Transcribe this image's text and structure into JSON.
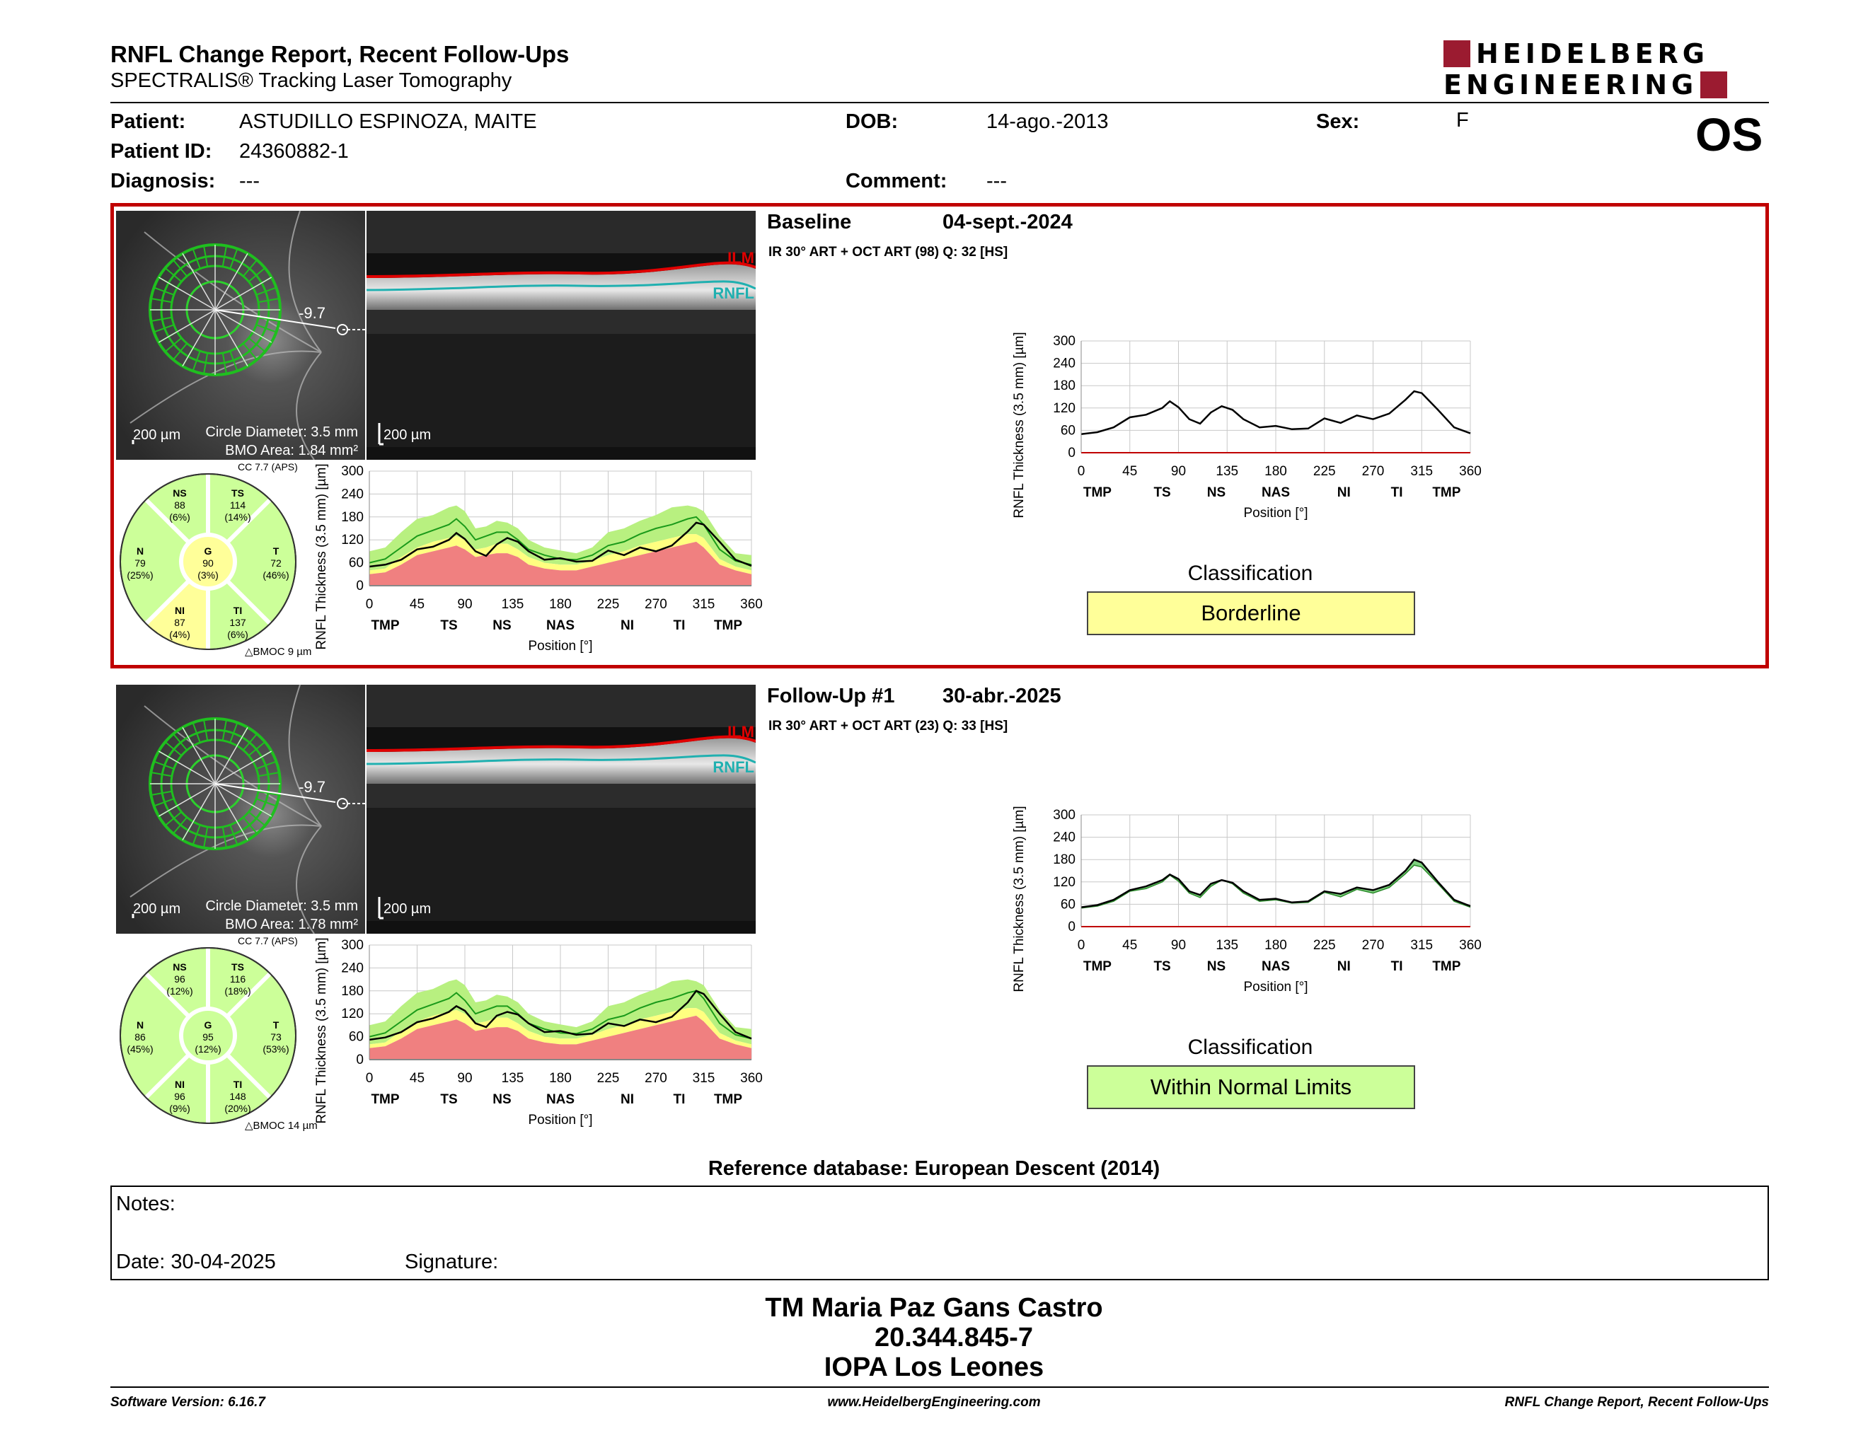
{
  "header": {
    "title": "RNFL Change Report, Recent Follow-Ups",
    "subtitle": "SPECTRALIS® Tracking Laser Tomography",
    "logo_line1": "HEIDELBERG",
    "logo_line2": "ENGINEERING",
    "eye": "OS"
  },
  "patient": {
    "patient_label": "Patient:",
    "patient_value": "ASTUDILLO ESPINOZA, MAITE",
    "id_label": "Patient ID:",
    "id_value": "24360882-1",
    "diagnosis_label": "Diagnosis:",
    "diagnosis_value": "---",
    "dob_label": "DOB:",
    "dob_value": "14-ago.-2013",
    "comment_label": "Comment:",
    "comment_value": "---",
    "sex_label": "Sex:",
    "sex_value": "F"
  },
  "common": {
    "scale_200": "200 µm",
    "circle_diameter": "Circle Diameter: 3.5 mm",
    "angle": "-9.7",
    "ilm": "ILM",
    "rnfl": "RNFL",
    "cc": "CC 7.7 (APS)",
    "classification_title": "Classification",
    "y_axis_label": "RNFL Thickness (3.5 mm) [µm]",
    "x_axis_label": "Position [°]",
    "x_ticks": [
      "0",
      "45",
      "90",
      "135",
      "180",
      "225",
      "270",
      "315",
      "360"
    ],
    "y_ticks": [
      "300",
      "240",
      "180",
      "120",
      "60",
      "0"
    ],
    "region_labels": [
      "TMP",
      "TS",
      "NS",
      "NAS",
      "NI",
      "TI",
      "TMP"
    ]
  },
  "baseline": {
    "label": "Baseline",
    "date": "04-sept.-2024",
    "scan": "IR 30° ART + OCT ART (98) Q: 32 [HS]",
    "bmo_area": "BMO Area: 1.84 mm²",
    "bmoc": "BMOC 9 µm",
    "classification": "Borderline",
    "class_color": "#ffff99",
    "sectors": {
      "NS": {
        "name": "NS",
        "value": "88",
        "pct": "(6%)"
      },
      "TS": {
        "name": "TS",
        "value": "114",
        "pct": "(14%)"
      },
      "N": {
        "name": "N",
        "value": "79",
        "pct": "(25%)"
      },
      "G": {
        "name": "G",
        "value": "90",
        "pct": "(3%)"
      },
      "T": {
        "name": "T",
        "value": "72",
        "pct": "(46%)"
      },
      "NI": {
        "name": "NI",
        "value": "87",
        "pct": "(4%)"
      },
      "TI": {
        "name": "TI",
        "value": "137",
        "pct": "(6%)"
      }
    }
  },
  "followup": {
    "label": "Follow-Up #1",
    "date": "30-abr.-2025",
    "scan": "IR 30° ART + OCT ART (23) Q: 33 [HS]",
    "bmo_area": "BMO Area: 1.78 mm²",
    "bmoc": "BMOC 14 µm",
    "classification": "Within Normal Limits",
    "class_color": "#ccff99",
    "sectors": {
      "NS": {
        "name": "NS",
        "value": "96",
        "pct": "(12%)"
      },
      "TS": {
        "name": "TS",
        "value": "116",
        "pct": "(18%)"
      },
      "N": {
        "name": "N",
        "value": "86",
        "pct": "(45%)"
      },
      "G": {
        "name": "G",
        "value": "95",
        "pct": "(12%)"
      },
      "T": {
        "name": "T",
        "value": "73",
        "pct": "(53%)"
      },
      "NI": {
        "name": "NI",
        "value": "96",
        "pct": "(9%)"
      },
      "TI": {
        "name": "TI",
        "value": "148",
        "pct": "(20%)"
      }
    }
  },
  "chart_data": [
    {
      "type": "line",
      "name_ref": "baseline",
      "xlabel": "Position [°]",
      "ylabel": "RNFL Thickness (3.5 mm) [µm]",
      "xlim": [
        0,
        360
      ],
      "ylim": [
        0,
        300
      ],
      "x": [
        0,
        15,
        30,
        45,
        60,
        75,
        82,
        90,
        100,
        110,
        120,
        130,
        140,
        150,
        165,
        180,
        195,
        210,
        225,
        240,
        255,
        270,
        285,
        300,
        308,
        315,
        330,
        345,
        360
      ],
      "values": [
        50,
        55,
        68,
        95,
        102,
        120,
        138,
        122,
        90,
        78,
        108,
        125,
        115,
        90,
        68,
        72,
        63,
        65,
        92,
        80,
        100,
        90,
        105,
        142,
        165,
        160,
        115,
        68,
        52
      ],
      "normal_upper": [
        90,
        100,
        140,
        175,
        185,
        205,
        210,
        195,
        150,
        155,
        170,
        165,
        150,
        120,
        100,
        92,
        85,
        100,
        140,
        150,
        170,
        185,
        205,
        210,
        205,
        195,
        130,
        85,
        80
      ],
      "normal_mean": [
        60,
        70,
        100,
        130,
        145,
        160,
        175,
        155,
        120,
        130,
        140,
        140,
        120,
        95,
        80,
        70,
        68,
        80,
        105,
        115,
        135,
        150,
        160,
        175,
        180,
        160,
        95,
        65,
        55
      ],
      "borderline_lower": [
        40,
        45,
        75,
        100,
        115,
        125,
        130,
        120,
        95,
        100,
        110,
        110,
        95,
        75,
        60,
        55,
        55,
        65,
        80,
        90,
        105,
        115,
        125,
        135,
        135,
        125,
        70,
        50,
        40
      ],
      "outside_lower": [
        30,
        35,
        55,
        80,
        90,
        100,
        105,
        95,
        75,
        80,
        85,
        85,
        75,
        55,
        45,
        40,
        40,
        50,
        60,
        70,
        80,
        90,
        100,
        110,
        115,
        100,
        55,
        40,
        30
      ]
    },
    {
      "type": "line",
      "name_ref": "followup",
      "xlabel": "Position [°]",
      "ylabel": "RNFL Thickness (3.5 mm) [µm]",
      "xlim": [
        0,
        360
      ],
      "ylim": [
        0,
        300
      ],
      "x": [
        0,
        15,
        30,
        45,
        60,
        75,
        82,
        90,
        100,
        110,
        120,
        130,
        140,
        150,
        165,
        180,
        195,
        210,
        225,
        240,
        255,
        270,
        285,
        300,
        308,
        315,
        330,
        345,
        360
      ],
      "values": [
        52,
        58,
        72,
        98,
        108,
        125,
        140,
        128,
        95,
        85,
        115,
        125,
        118,
        95,
        72,
        75,
        65,
        68,
        95,
        88,
        105,
        98,
        112,
        150,
        180,
        172,
        120,
        72,
        55
      ],
      "baseline_values": [
        50,
        55,
        68,
        95,
        102,
        120,
        138,
        122,
        90,
        78,
        108,
        125,
        115,
        90,
        68,
        72,
        63,
        65,
        92,
        80,
        100,
        90,
        105,
        142,
        165,
        160,
        115,
        68,
        52
      ],
      "normal_upper": [
        90,
        100,
        140,
        175,
        185,
        205,
        210,
        195,
        150,
        155,
        170,
        165,
        150,
        120,
        100,
        92,
        85,
        100,
        140,
        150,
        170,
        185,
        205,
        210,
        205,
        195,
        130,
        85,
        80
      ],
      "normal_mean": [
        60,
        70,
        100,
        130,
        145,
        160,
        175,
        155,
        120,
        130,
        140,
        140,
        120,
        95,
        80,
        70,
        68,
        80,
        105,
        115,
        135,
        150,
        160,
        175,
        180,
        160,
        95,
        65,
        55
      ],
      "borderline_lower": [
        40,
        45,
        75,
        100,
        115,
        125,
        130,
        120,
        95,
        100,
        110,
        110,
        95,
        75,
        60,
        55,
        55,
        65,
        80,
        90,
        105,
        115,
        125,
        135,
        135,
        125,
        70,
        50,
        40
      ],
      "outside_lower": [
        30,
        35,
        55,
        80,
        90,
        100,
        105,
        95,
        75,
        80,
        85,
        85,
        75,
        55,
        45,
        40,
        40,
        50,
        60,
        70,
        80,
        90,
        100,
        110,
        115,
        100,
        55,
        40,
        30
      ]
    }
  ],
  "reference": "Reference database: European Descent (2014)",
  "notes": {
    "label": "Notes:",
    "date": "Date: 30-04-2025",
    "signature": "Signature:"
  },
  "signature": {
    "name": "TM Maria Paz Gans Castro",
    "id": "20.344.845-7",
    "place": "IOPA Los Leones"
  },
  "footer": {
    "left": "Software Version: 6.16.7",
    "center": "www.HeidelbergEngineering.com",
    "right": "RNFL Change Report, Recent Follow-Ups"
  }
}
